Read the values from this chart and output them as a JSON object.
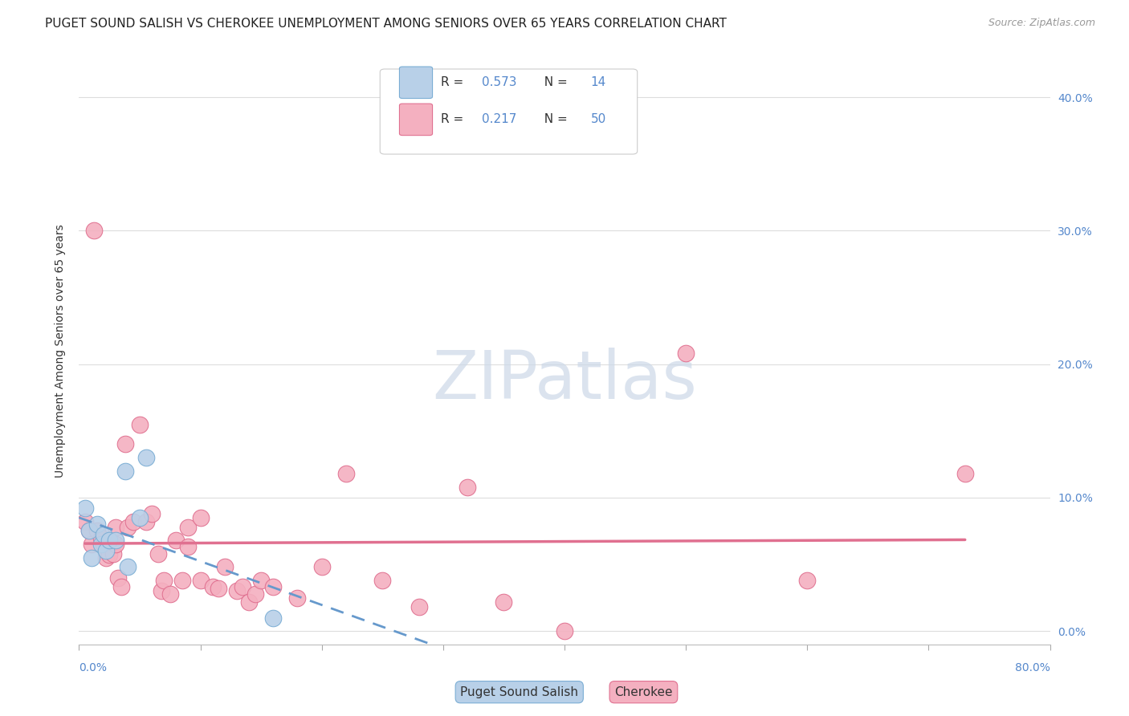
{
  "title": "PUGET SOUND SALISH VS CHEROKEE UNEMPLOYMENT AMONG SENIORS OVER 65 YEARS CORRELATION CHART",
  "source": "Source: ZipAtlas.com",
  "ylabel": "Unemployment Among Seniors over 65 years",
  "ytick_labels": [
    "0.0%",
    "10.0%",
    "20.0%",
    "30.0%",
    "40.0%"
  ],
  "ytick_values": [
    0.0,
    0.1,
    0.2,
    0.3,
    0.4
  ],
  "xlim": [
    0.0,
    0.8
  ],
  "ylim": [
    -0.01,
    0.43
  ],
  "background_color": "#ffffff",
  "grid_color": "#dddddd",
  "legend_R1": "0.573",
  "legend_N1": "14",
  "legend_R2": "0.217",
  "legend_N2": "50",
  "puget_fill": "#b8d0e8",
  "puget_edge": "#7aadd4",
  "cherokee_fill": "#f4b0c0",
  "cherokee_edge": "#e07090",
  "puget_line_color": "#6699cc",
  "cherokee_line_color": "#e07090",
  "puget_scatter_x": [
    0.005,
    0.008,
    0.01,
    0.015,
    0.018,
    0.02,
    0.022,
    0.025,
    0.03,
    0.038,
    0.04,
    0.05,
    0.055,
    0.16
  ],
  "puget_scatter_y": [
    0.092,
    0.075,
    0.055,
    0.08,
    0.065,
    0.072,
    0.06,
    0.068,
    0.068,
    0.12,
    0.048,
    0.085,
    0.13,
    0.01
  ],
  "cherokee_scatter_x": [
    0.005,
    0.008,
    0.01,
    0.012,
    0.015,
    0.018,
    0.02,
    0.022,
    0.025,
    0.028,
    0.03,
    0.03,
    0.032,
    0.035,
    0.038,
    0.04,
    0.045,
    0.05,
    0.055,
    0.06,
    0.065,
    0.068,
    0.07,
    0.075,
    0.08,
    0.085,
    0.09,
    0.09,
    0.1,
    0.1,
    0.11,
    0.115,
    0.12,
    0.13,
    0.135,
    0.14,
    0.145,
    0.15,
    0.16,
    0.18,
    0.2,
    0.22,
    0.25,
    0.28,
    0.32,
    0.35,
    0.4,
    0.5,
    0.6,
    0.73
  ],
  "cherokee_scatter_y": [
    0.082,
    0.075,
    0.065,
    0.3,
    0.075,
    0.07,
    0.065,
    0.055,
    0.057,
    0.058,
    0.078,
    0.065,
    0.04,
    0.033,
    0.14,
    0.078,
    0.082,
    0.155,
    0.082,
    0.088,
    0.058,
    0.03,
    0.038,
    0.028,
    0.068,
    0.038,
    0.078,
    0.063,
    0.085,
    0.038,
    0.033,
    0.032,
    0.048,
    0.03,
    0.033,
    0.022,
    0.028,
    0.038,
    0.033,
    0.025,
    0.048,
    0.118,
    0.038,
    0.018,
    0.108,
    0.022,
    0.0,
    0.208,
    0.038,
    0.118
  ],
  "title_fontsize": 11,
  "axis_label_fontsize": 10,
  "tick_fontsize": 10,
  "legend_fontsize": 11,
  "watermark_text": "ZIPatlas",
  "watermark_color": "#ccd8e8",
  "watermark_fontsize": 60
}
